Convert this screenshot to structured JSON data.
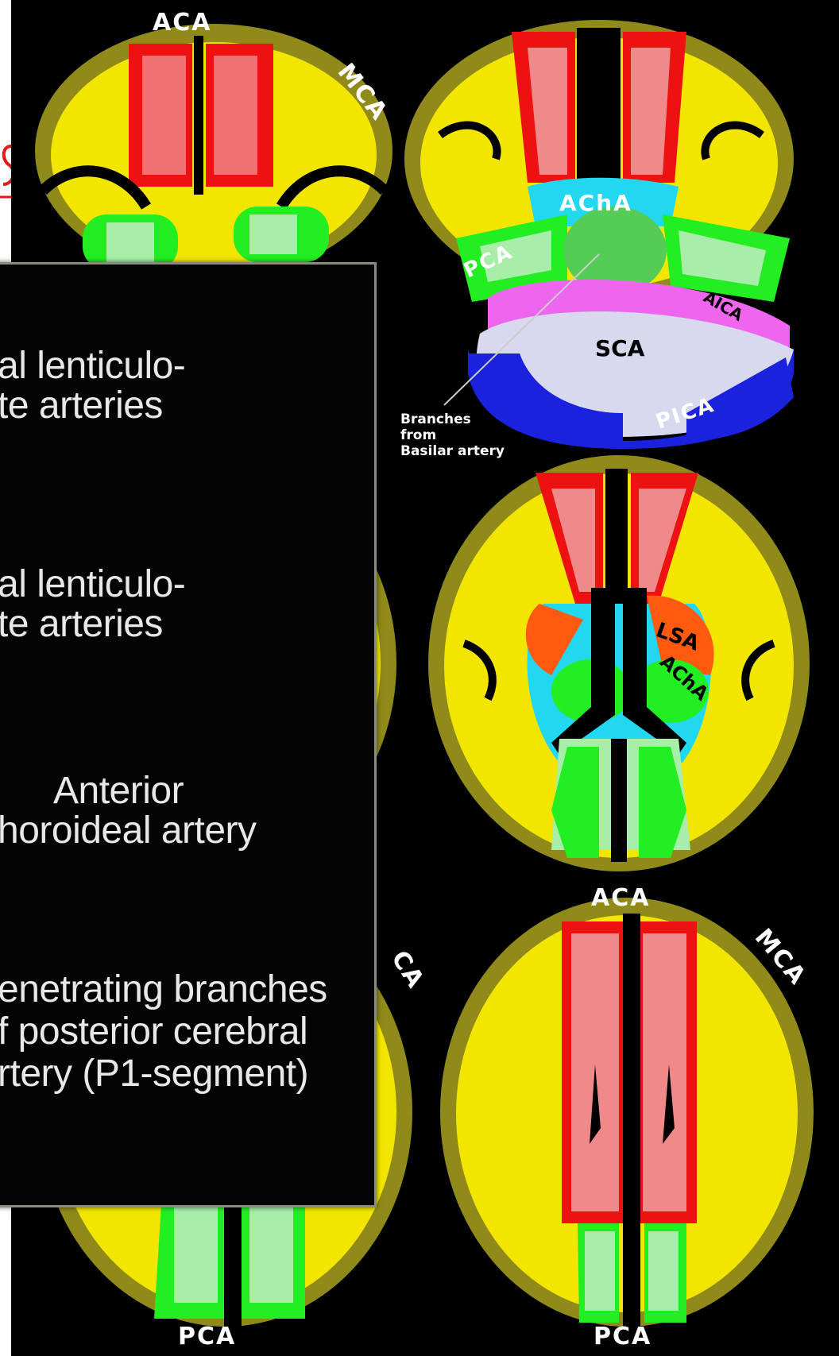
{
  "labels": {
    "top_left_aca": "ACA",
    "top_left_mca": "MCA",
    "top_right_acha": "AChA",
    "top_right_pca": "PCA",
    "top_right_aica": "AICA",
    "top_right_sca": "SCA",
    "top_right_pica": "PICA",
    "basilar_note": [
      "Branches",
      "from",
      "Basilar artery"
    ],
    "mid_right_lsa": "LSA",
    "mid_right_acha": "AChA",
    "bottom_left_ca": "CA",
    "bottom_left_pca": "PCA",
    "bottom_right_aca": "ACA",
    "bottom_right_mca": "MCA",
    "bottom_right_pca": "PCA"
  },
  "overlay": {
    "item1": [
      "al lenticulo-",
      "te arteries"
    ],
    "item2": [
      "al lenticulo-",
      "te arteries"
    ],
    "item3": [
      "Anterior",
      "horoideal artery"
    ],
    "item4": [
      "enetrating branches",
      "f posterior cerebral",
      "rtery (P1-segment)"
    ]
  },
  "colors": {
    "background": "#000000",
    "cortex": "#f2e600",
    "cortex_rim": "#8f8a1a",
    "aca": "#ee1111",
    "aca_light": "#f08a8a",
    "mca": "#f2e600",
    "pca": "#22ee22",
    "pca_light": "#a8eea8",
    "acha": "#22d8f0",
    "aica": "#ee66ee",
    "sca": "#d8d8ee",
    "pica": "#1a22dd",
    "lsa": "#ff5a10",
    "overlay_text": "#e8e8e8"
  }
}
